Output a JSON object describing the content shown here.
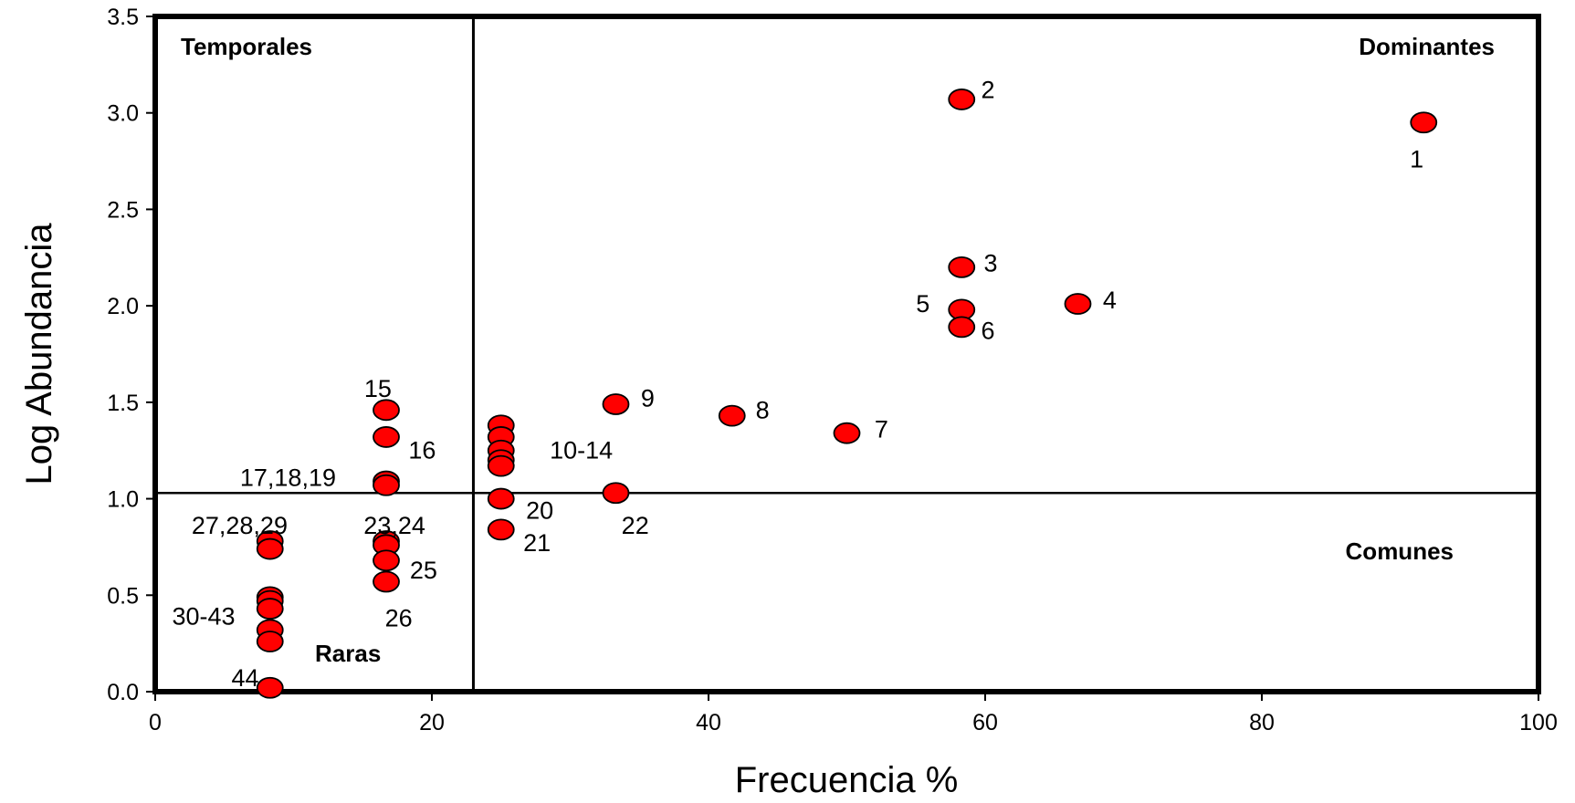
{
  "chart_data": {
    "type": "scatter",
    "xlabel": "Frecuencia %",
    "ylabel": "Log Abundancia",
    "xlim": [
      0,
      100
    ],
    "ylim": [
      0,
      3.5
    ],
    "xticks": [
      "0",
      "20",
      "40",
      "60",
      "80",
      "100"
    ],
    "yticks": [
      "0.0",
      "0.5",
      "1.0",
      "1.5",
      "2.0",
      "2.5",
      "3.0",
      "3.5"
    ],
    "xtick_values": [
      0,
      20,
      40,
      60,
      80,
      100
    ],
    "ytick_values": [
      0,
      0.5,
      1.0,
      1.5,
      2.0,
      2.5,
      3.0,
      3.5
    ],
    "grid": false,
    "point_color": "#ff0000",
    "divider_x": 23,
    "divider_y": 1.03,
    "quadrants": {
      "top_left": "Temporales",
      "top_right": "Dominantes",
      "bottom_right": "Comunes",
      "bottom_left": "Raras"
    },
    "points": [
      {
        "x": 91.7,
        "y": 2.95
      },
      {
        "x": 58.3,
        "y": 3.07
      },
      {
        "x": 58.3,
        "y": 2.2
      },
      {
        "x": 66.7,
        "y": 2.01
      },
      {
        "x": 58.3,
        "y": 1.98
      },
      {
        "x": 58.3,
        "y": 1.89
      },
      {
        "x": 50.0,
        "y": 1.34
      },
      {
        "x": 41.7,
        "y": 1.43
      },
      {
        "x": 33.3,
        "y": 1.49
      },
      {
        "x": 25.0,
        "y": 1.38
      },
      {
        "x": 25.0,
        "y": 1.32
      },
      {
        "x": 25.0,
        "y": 1.25
      },
      {
        "x": 25.0,
        "y": 1.2
      },
      {
        "x": 25.0,
        "y": 1.17
      },
      {
        "x": 16.7,
        "y": 1.46
      },
      {
        "x": 16.7,
        "y": 1.32
      },
      {
        "x": 16.7,
        "y": 1.09
      },
      {
        "x": 16.7,
        "y": 1.07
      },
      {
        "x": 25.0,
        "y": 1.0
      },
      {
        "x": 25.0,
        "y": 0.84
      },
      {
        "x": 33.3,
        "y": 1.03
      },
      {
        "x": 16.7,
        "y": 0.78
      },
      {
        "x": 16.7,
        "y": 0.76
      },
      {
        "x": 16.7,
        "y": 0.68
      },
      {
        "x": 16.7,
        "y": 0.57
      },
      {
        "x": 8.3,
        "y": 0.78
      },
      {
        "x": 8.3,
        "y": 0.74
      },
      {
        "x": 8.3,
        "y": 0.49
      },
      {
        "x": 8.3,
        "y": 0.47
      },
      {
        "x": 8.3,
        "y": 0.43
      },
      {
        "x": 8.3,
        "y": 0.32
      },
      {
        "x": 8.3,
        "y": 0.26
      },
      {
        "x": 8.3,
        "y": 0.02
      }
    ],
    "point_labels": [
      {
        "text": "1",
        "x": 91.2,
        "y": 2.76
      },
      {
        "text": "2",
        "x": 60.2,
        "y": 3.12
      },
      {
        "text": "3",
        "x": 60.4,
        "y": 2.22
      },
      {
        "text": "4",
        "x": 69.0,
        "y": 2.03
      },
      {
        "text": "5",
        "x": 55.5,
        "y": 2.01
      },
      {
        "text": "6",
        "x": 60.2,
        "y": 1.87
      },
      {
        "text": "7",
        "x": 52.5,
        "y": 1.36
      },
      {
        "text": "8",
        "x": 43.9,
        "y": 1.46
      },
      {
        "text": "9",
        "x": 35.6,
        "y": 1.52
      },
      {
        "text": "10-14",
        "x": 30.8,
        "y": 1.25
      },
      {
        "text": "15",
        "x": 16.1,
        "y": 1.57
      },
      {
        "text": "16",
        "x": 19.3,
        "y": 1.25
      },
      {
        "text": "17,18,19",
        "x": 9.6,
        "y": 1.11
      },
      {
        "text": "20",
        "x": 27.8,
        "y": 0.94
      },
      {
        "text": "21",
        "x": 27.6,
        "y": 0.77
      },
      {
        "text": "22",
        "x": 34.7,
        "y": 0.86
      },
      {
        "text": "23,24",
        "x": 17.3,
        "y": 0.86
      },
      {
        "text": "25",
        "x": 19.4,
        "y": 0.63
      },
      {
        "text": "26",
        "x": 17.6,
        "y": 0.38
      },
      {
        "text": "27,28,29",
        "x": 6.1,
        "y": 0.86
      },
      {
        "text": "30-43",
        "x": 3.5,
        "y": 0.39
      },
      {
        "text": "44",
        "x": 6.5,
        "y": 0.07
      }
    ]
  }
}
